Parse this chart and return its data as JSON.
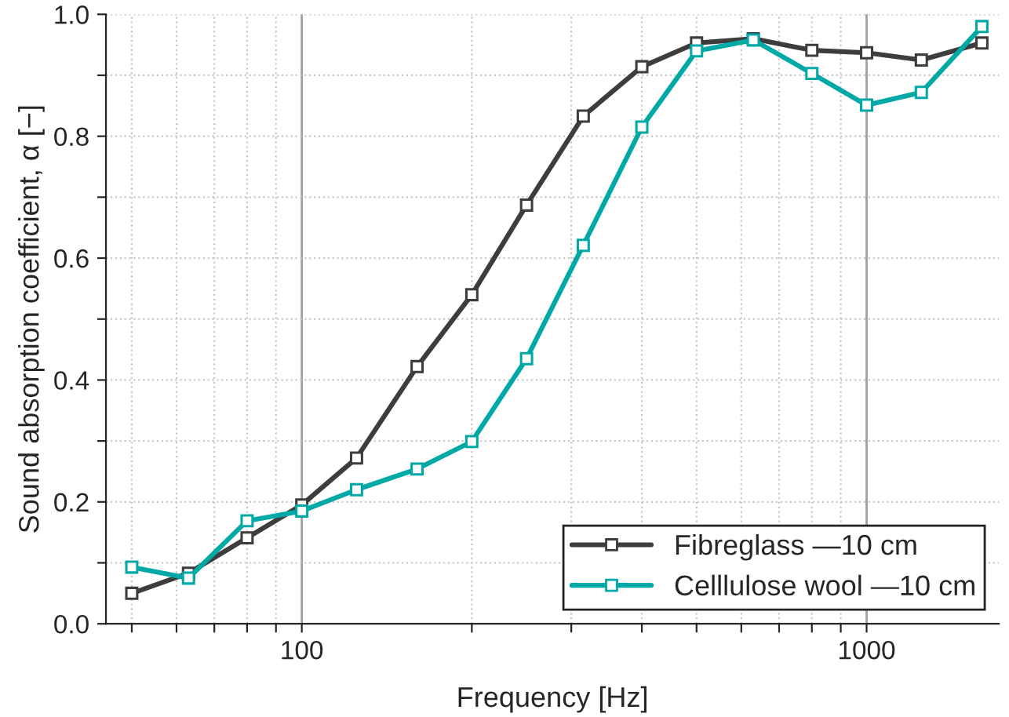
{
  "chart_data": {
    "type": "line",
    "xlabel": "Frequency [Hz]",
    "ylabel": "Sound absorption coefficient, α [−]",
    "log": "x",
    "xlim": [
      45,
      1715
    ],
    "ylim": [
      0,
      1
    ],
    "xticks": [
      {
        "value": 50,
        "label": null
      },
      {
        "value": 60,
        "label": null
      },
      {
        "value": 70,
        "label": null
      },
      {
        "value": 80,
        "label": null
      },
      {
        "value": 90,
        "label": null
      },
      100,
      {
        "value": 200,
        "label": null
      },
      {
        "value": 300,
        "label": null
      },
      {
        "value": 400,
        "label": null
      },
      {
        "value": 500,
        "label": null
      },
      {
        "value": 600,
        "label": null
      },
      {
        "value": 700,
        "label": null
      },
      {
        "value": 800,
        "label": null
      },
      {
        "value": 900,
        "label": null
      },
      1000
    ],
    "yticks": [
      {
        "value": 0,
        "label": "0.0"
      },
      {
        "value": 0.1,
        "label": null
      },
      {
        "value": 0.2,
        "label": "0.2"
      },
      {
        "value": 0.3,
        "label": null
      },
      {
        "value": 0.4,
        "label": "0.4"
      },
      {
        "value": 0.5,
        "label": null
      },
      {
        "value": 0.6,
        "label": "0.6"
      },
      {
        "value": 0.7,
        "label": null
      },
      {
        "value": 0.8,
        "label": "0.8"
      },
      {
        "value": 0.9,
        "label": null
      },
      {
        "value": 1.0,
        "label": "1.0"
      }
    ],
    "x": [
      50,
      63,
      80,
      100,
      125,
      160,
      200,
      250,
      315,
      400,
      500,
      630,
      800,
      1000,
      1250,
      1600
    ],
    "series": [
      {
        "name": "Fibreglass —10 cm",
        "color": "#3d3d3d",
        "values": [
          0.05,
          0.083,
          0.141,
          0.195,
          0.272,
          0.422,
          0.54,
          0.687,
          0.833,
          0.914,
          0.953,
          0.96,
          0.941,
          0.937,
          0.925,
          0.953
        ]
      },
      {
        "name": "Celllulose wool —10 cm",
        "color": "#00a9a5",
        "values": [
          0.093,
          0.075,
          0.169,
          0.185,
          0.22,
          0.254,
          0.299,
          0.435,
          0.621,
          0.815,
          0.94,
          0.958,
          0.903,
          0.851,
          0.872,
          0.98
        ]
      }
    ],
    "marker": "square",
    "line_style": "solid",
    "grid": true,
    "legend": "bottom right"
  }
}
